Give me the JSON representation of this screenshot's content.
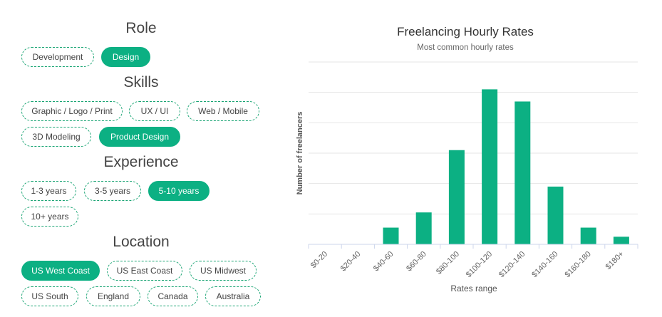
{
  "filters": {
    "role": {
      "title": "Role",
      "options": [
        {
          "label": "Development",
          "selected": false
        },
        {
          "label": "Design",
          "selected": true
        }
      ]
    },
    "skills": {
      "title": "Skills",
      "options": [
        {
          "label": "Graphic / Logo / Print",
          "selected": false
        },
        {
          "label": "UX / UI",
          "selected": false
        },
        {
          "label": "Web / Mobile",
          "selected": false
        },
        {
          "label": "3D Modeling",
          "selected": false
        },
        {
          "label": "Product Design",
          "selected": true
        }
      ]
    },
    "experience": {
      "title": "Experience",
      "options": [
        {
          "label": "1-3 years",
          "selected": false
        },
        {
          "label": "3-5 years",
          "selected": false
        },
        {
          "label": "5-10 years",
          "selected": true
        },
        {
          "label": "10+ years",
          "selected": false
        }
      ]
    },
    "location": {
      "title": "Location",
      "options": [
        {
          "label": "US West Coast",
          "selected": true
        },
        {
          "label": "US East Coast",
          "selected": false
        },
        {
          "label": "US Midwest",
          "selected": false
        },
        {
          "label": "US South",
          "selected": false
        },
        {
          "label": "England",
          "selected": false
        },
        {
          "label": "Canada",
          "selected": false
        },
        {
          "label": "Australia",
          "selected": false
        }
      ]
    }
  },
  "colors": {
    "accent": "#0cb083",
    "pill_border": "#1aa574"
  },
  "chart_data": {
    "type": "bar",
    "title": "Freelancing Hourly Rates",
    "subtitle": "Most common hourly rates",
    "xlabel": "Rates range",
    "ylabel": "Number of freelancers",
    "categories": [
      "$0-20",
      "$20-40",
      "$40-60",
      "$60-80",
      "$80-100",
      "$100-120",
      "$120-140",
      "$140-160",
      "$160-180",
      "$180+"
    ],
    "values": [
      0,
      0,
      5.5,
      10.5,
      31,
      51,
      47,
      19,
      5.5,
      2.5
    ],
    "ylim": [
      0,
      60
    ],
    "grid": true,
    "y_tick_labels_shown": false,
    "legend": "none"
  }
}
